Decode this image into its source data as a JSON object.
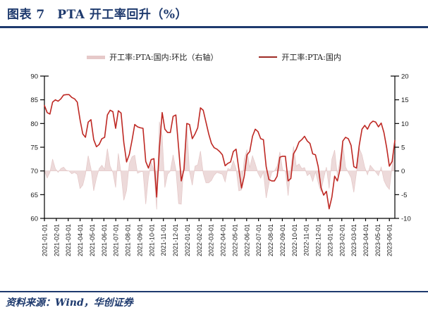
{
  "header": {
    "title": "图表 7　PTA 开工率回升（%）"
  },
  "source": {
    "text": "资料来源：Wind，华创证券"
  },
  "colors": {
    "accent_navy": "#1E3A6E",
    "line_red": "#BE2823",
    "area_pink": "#EDDADA",
    "axis_black": "#000000"
  },
  "chart_data": {
    "type": "line",
    "title": "PTA 开工率回升（%）",
    "grid": false,
    "legend_position": "top",
    "legend": [
      {
        "label": "开工率:PTA:国内:环比（右轴）",
        "type": "area",
        "color": "#E6C9C9"
      },
      {
        "label": "开工率:PTA:国内",
        "type": "line",
        "color": "#9E2B25"
      }
    ],
    "left_axis": {
      "min": 60,
      "max": 90,
      "ticks": [
        90,
        85,
        80,
        75,
        70,
        65,
        60
      ]
    },
    "right_axis": {
      "min": -10,
      "max": 20,
      "ticks": [
        20,
        15,
        10,
        5,
        0,
        -5,
        -10
      ]
    },
    "x_labels": [
      "2021-01-01",
      "2021-02-01",
      "2021-03-01",
      "2021-04-01",
      "2021-05-01",
      "2021-06-01",
      "2021-07-01",
      "2021-08-01",
      "2021-09-01",
      "2021-10-01",
      "2021-11-01",
      "2021-12-01",
      "2022-01-01",
      "2022-02-01",
      "2022-03-01",
      "2022-04-01",
      "2022-05-01",
      "2022-06-01",
      "2022-07-01",
      "2022-08-01",
      "2022-09-01",
      "2022-10-01",
      "2022-11-01",
      "2022-12-01",
      "2023-01-01",
      "2023-02-01",
      "2023-03-01",
      "2023-04-01",
      "2023-05-01",
      "2023-06-01"
    ],
    "frequency": "weekly",
    "series": [
      {
        "name": "开工率:PTA:国内",
        "axis": "left",
        "type": "line",
        "values": [
          83.8,
          82.3,
          82.0,
          84.5,
          85.0,
          84.7,
          85.2,
          86.0,
          86.1,
          86.1,
          85.5,
          85.2,
          84.5,
          80.8,
          77.8,
          77.1,
          80.3,
          80.8,
          76.6,
          75.1,
          75.6,
          76.8,
          77.1,
          81.8,
          82.8,
          82.5,
          79.0,
          82.7,
          82.2,
          76.0,
          71.9,
          73.5,
          76.5,
          79.8,
          79.3,
          79.1,
          79.0,
          72.0,
          70.6,
          72.4,
          72.6,
          64.5,
          74.9,
          82.3,
          78.8,
          78.1,
          78.1,
          81.5,
          81.8,
          74.9,
          67.9,
          70.4,
          80.0,
          79.8,
          76.8,
          77.8,
          79.1,
          83.3,
          82.8,
          80.3,
          77.8,
          75.8,
          74.9,
          74.6,
          74.1,
          73.4,
          71.1,
          71.6,
          71.9,
          74.1,
          74.6,
          70.4,
          66.4,
          68.9,
          73.4,
          74.1,
          77.3,
          78.8,
          78.3,
          76.8,
          76.6,
          70.9,
          68.2,
          67.9,
          67.9,
          68.9,
          72.9,
          73.1,
          73.1,
          67.9,
          68.4,
          73.6,
          74.6,
          76.1,
          76.6,
          77.3,
          76.3,
          75.8,
          73.6,
          73.4,
          70.9,
          66.5,
          64.9,
          65.7,
          62.0,
          64.5,
          68.9,
          67.9,
          70.4,
          76.3,
          77.1,
          76.8,
          75.4,
          70.9,
          70.6,
          75.4,
          78.8,
          79.6,
          78.8,
          80.0,
          80.5,
          80.3,
          79.3,
          80.1,
          78.1,
          74.9,
          71.0,
          72.0,
          76.4
        ]
      },
      {
        "name": "开工率:PTA:国内:环比（右轴）",
        "axis": "right",
        "type": "area",
        "values": [
          0,
          -1.5,
          -0.3,
          2.5,
          0.5,
          -0.3,
          0.5,
          0.8,
          0.1,
          0.0,
          -0.6,
          -0.3,
          -0.7,
          -3.7,
          -3.0,
          -0.7,
          3.2,
          0.5,
          -4.2,
          -1.5,
          0.5,
          1.2,
          0.3,
          4.7,
          1.0,
          -0.3,
          -3.5,
          3.7,
          -0.5,
          -6.2,
          -4.1,
          1.6,
          3.0,
          3.3,
          -0.5,
          -0.2,
          -0.1,
          -7.0,
          -1.4,
          1.8,
          0.2,
          -8.1,
          10.4,
          7.4,
          -3.5,
          -0.7,
          0.0,
          3.4,
          0.3,
          -6.9,
          -7.0,
          2.5,
          9.6,
          -0.2,
          -3.0,
          1.0,
          1.3,
          4.2,
          -0.5,
          -2.5,
          -2.5,
          -2.0,
          -0.9,
          -0.3,
          -0.5,
          -0.7,
          -2.3,
          0.5,
          0.3,
          2.2,
          0.5,
          -4.2,
          -4.0,
          2.5,
          4.5,
          0.7,
          3.2,
          1.5,
          -0.5,
          -1.5,
          -0.2,
          -5.7,
          -2.7,
          -0.3,
          0.0,
          1.0,
          4.0,
          0.2,
          0.0,
          -5.2,
          0.5,
          5.2,
          1.0,
          1.5,
          0.5,
          0.7,
          -1.0,
          -0.5,
          -2.2,
          -0.2,
          -2.5,
          -4.4,
          -1.6,
          0.8,
          -3.7,
          2.5,
          4.4,
          -1.0,
          2.5,
          5.9,
          0.8,
          -0.3,
          -1.4,
          -4.5,
          -0.3,
          4.8,
          3.4,
          0.8,
          -0.8,
          1.2,
          0.5,
          -0.2,
          -1.0,
          0.8,
          -2.0,
          -3.2,
          -3.9,
          1.0,
          4.4
        ]
      }
    ]
  }
}
